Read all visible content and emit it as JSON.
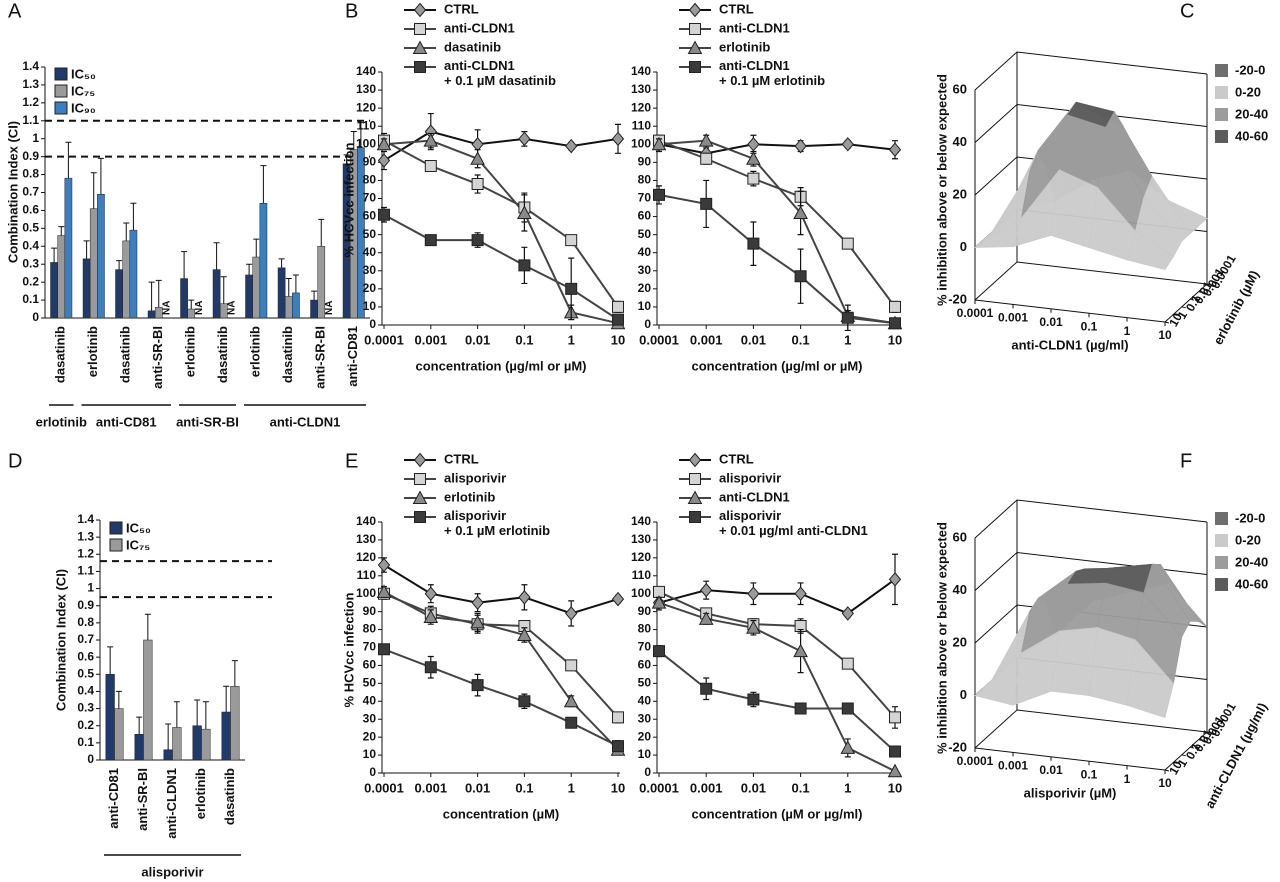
{
  "chart_data": [
    {
      "panel": "A",
      "type": "bar",
      "y_label": "Combination Index (CI)",
      "ylim": [
        0,
        1.4
      ],
      "yticks": [
        0,
        0.1,
        0.2,
        0.3,
        0.4,
        0.5,
        0.6,
        0.7,
        0.8,
        0.9,
        1,
        1.1,
        1.2,
        1.3,
        1.4
      ],
      "reference_lines": [
        0.9,
        1.1
      ],
      "groups": [
        {
          "name": "erlotinib",
          "categories": [
            "dasatinib"
          ]
        },
        {
          "name": "anti-CD81",
          "categories": [
            "erlotinib",
            "dasatinib",
            "anti-SR-BI"
          ]
        },
        {
          "name": "anti-SR-BI",
          "categories": [
            "erlotinib",
            "dasatinib"
          ]
        },
        {
          "name": "anti-CLDN1",
          "categories": [
            "erlotinib",
            "dasatinib",
            "anti-SR-BI",
            "anti-CD81"
          ]
        }
      ],
      "series": [
        {
          "name": "IC₅₀",
          "color": "#1f3a6b",
          "values": [
            0.31,
            0.33,
            0.27,
            0.04,
            0.22,
            0.27,
            0.24,
            0.28,
            0.1,
            0.86
          ],
          "errors": [
            0.08,
            0.1,
            0.05,
            0.16,
            0.15,
            0.15,
            0.06,
            0.05,
            0.05,
            0.05
          ]
        },
        {
          "name": "IC₇₅",
          "color": "#9a9a9a",
          "values": [
            0.46,
            0.61,
            0.43,
            0.06,
            0.05,
            0.08,
            0.34,
            0.12,
            0.4,
            0.94
          ],
          "errors": [
            0.05,
            0.2,
            0.1,
            0.15,
            0.05,
            0.15,
            0.1,
            0.1,
            0.15,
            0.1
          ]
        },
        {
          "name": "IC₉₀",
          "color": "#3a7fc1",
          "values": [
            0.78,
            0.69,
            0.49,
            null,
            null,
            null,
            0.64,
            0.14,
            null,
            0.95
          ],
          "errors": [
            0.2,
            0.2,
            0.15,
            null,
            null,
            null,
            0.21,
            0.1,
            null,
            0.14
          ],
          "value_labels": [
            null,
            null,
            null,
            "NA",
            "NA",
            "NA",
            null,
            null,
            "NA",
            null
          ]
        }
      ]
    },
    {
      "panel": "B",
      "type": "line",
      "y_label": "% HCVcc infection",
      "x_label": "concentration (µg/ml or µM)",
      "line_color": "#444",
      "x": [
        0.0001,
        0.001,
        0.01,
        0.1,
        1,
        10
      ],
      "xscale": "log",
      "xlim": [
        0.0001,
        10
      ],
      "xticks": [
        0.0001,
        0.001,
        0.01,
        0.1,
        1,
        10
      ],
      "ylim": [
        0,
        140
      ],
      "yticks": [
        0,
        10,
        20,
        30,
        40,
        50,
        60,
        70,
        80,
        90,
        100,
        110,
        120,
        130,
        140
      ],
      "series": [
        {
          "name": "CTRL",
          "marker": "diamond",
          "color": "#9a9a9a",
          "values": [
            91,
            107,
            100,
            103,
            99,
            103
          ],
          "errors": [
            5,
            10,
            8,
            4,
            2,
            8
          ]
        },
        {
          "name": "anti-CLDN1",
          "marker": "square",
          "color": "#d4d4d4",
          "values": [
            102,
            88,
            78,
            65,
            47,
            10
          ],
          "errors": [
            4,
            3,
            5,
            8,
            2,
            3
          ]
        },
        {
          "name": "dasatinib",
          "marker": "triangle",
          "color": "#8a8a8a",
          "values": [
            100,
            102,
            92,
            62,
            7,
            1
          ],
          "errors": [
            3,
            4,
            5,
            10,
            4,
            1
          ]
        },
        {
          "name": "anti-CLDN1\n+ 0.1 µM dasatinib",
          "marker": "square",
          "color": "#3a3a3a",
          "values": [
            61,
            47,
            47,
            33,
            20,
            3
          ],
          "errors": [
            4,
            2,
            4,
            10,
            17,
            2
          ]
        }
      ]
    },
    {
      "type": "line",
      "x_label": "concentration (µg/ml or µM)",
      "line_color": "#444",
      "x": [
        0.0001,
        0.001,
        0.01,
        0.1,
        1,
        10
      ],
      "xscale": "log",
      "xlim": [
        0.0001,
        10
      ],
      "xticks": [
        0.0001,
        0.001,
        0.01,
        0.1,
        1,
        10
      ],
      "ylim": [
        0,
        140
      ],
      "yticks": [
        0,
        10,
        20,
        30,
        40,
        50,
        60,
        70,
        80,
        90,
        100,
        110,
        120,
        130,
        140
      ],
      "series": [
        {
          "name": "CTRL",
          "marker": "diamond",
          "color": "#9a9a9a",
          "values": [
            100,
            95,
            100,
            99,
            100,
            97
          ],
          "errors": [
            4,
            3,
            5,
            3,
            2,
            5
          ]
        },
        {
          "name": "anti-CLDN1",
          "marker": "square",
          "color": "#d4d4d4",
          "values": [
            102,
            92,
            81,
            71,
            45,
            10
          ],
          "errors": [
            3,
            3,
            4,
            5,
            2,
            3
          ]
        },
        {
          "name": "erlotinib",
          "marker": "triangle",
          "color": "#8a8a8a",
          "values": [
            100,
            102,
            92,
            62,
            5,
            1
          ],
          "errors": [
            3,
            3,
            4,
            12,
            3,
            1
          ]
        },
        {
          "name": "anti-CLDN1\n+ 0.1 µM erlotinib",
          "marker": "square",
          "color": "#3a3a3a",
          "values": [
            72,
            67,
            45,
            27,
            4,
            1
          ],
          "errors": [
            5,
            13,
            12,
            15,
            7,
            1
          ]
        }
      ]
    },
    {
      "panel": "C",
      "type": "surface",
      "z_label": "% inhibition above or below expected",
      "x_label": "anti-CLDN1 (µg/ml)",
      "y_label": "erlotinib (µM)",
      "xlim": [
        0.0001,
        10
      ],
      "xticks": [
        0.0001,
        0.001,
        0.01,
        0.1,
        1,
        10
      ],
      "ylim": [
        0.0001,
        10
      ],
      "yticks": [
        0.0001,
        0.001,
        0.01,
        0.1,
        1,
        10
      ],
      "zlim": [
        -20,
        60
      ],
      "zticks": [
        -20,
        0,
        20,
        40,
        60
      ],
      "x": [
        0.0001,
        0.001,
        0.01,
        0.1,
        1,
        10
      ],
      "y": [
        0.0001,
        0.001,
        0.01,
        0.1,
        1,
        10
      ],
      "z": [
        [
          0,
          5,
          15,
          20,
          10,
          5
        ],
        [
          0,
          20,
          45,
          40,
          15,
          5
        ],
        [
          0,
          30,
          50,
          48,
          25,
          5
        ],
        [
          0,
          25,
          48,
          45,
          20,
          5
        ],
        [
          0,
          10,
          30,
          25,
          10,
          2
        ],
        [
          0,
          2,
          8,
          5,
          2,
          0
        ]
      ],
      "bands": [
        {
          "label": "-20-0",
          "range": [
            -20,
            0
          ],
          "color": "#6e6e6e"
        },
        {
          "label": "0-20",
          "range": [
            0,
            20
          ],
          "color": "#cacaca"
        },
        {
          "label": "20-40",
          "range": [
            20,
            40
          ],
          "color": "#9c9c9c"
        },
        {
          "label": "40-60",
          "range": [
            40,
            60
          ],
          "color": "#5c5c5c"
        }
      ]
    },
    {
      "panel": "D",
      "type": "bar",
      "y_label": "Combination Index (CI)",
      "ylim": [
        0,
        1.4
      ],
      "yticks": [
        0,
        0.1,
        0.2,
        0.3,
        0.4,
        0.5,
        0.6,
        0.7,
        0.8,
        0.9,
        1,
        1.1,
        1.2,
        1.3,
        1.4
      ],
      "reference_lines": [
        0.95,
        1.16
      ],
      "groups": [
        {
          "name": "alisporivir",
          "categories": [
            "anti-CD81",
            "anti-SR-BI",
            "anti-CLDN1",
            "erlotinib",
            "dasatinib"
          ]
        }
      ],
      "series": [
        {
          "name": "IC₅₀",
          "color": "#1f3a6b",
          "values": [
            0.5,
            0.15,
            0.06,
            0.2,
            0.28
          ],
          "errors": [
            0.16,
            0.1,
            0.15,
            0.15,
            0.15
          ]
        },
        {
          "name": "IC₇₅",
          "color": "#9a9a9a",
          "values": [
            0.3,
            0.7,
            0.19,
            0.18,
            0.43
          ],
          "errors": [
            0.1,
            0.15,
            0.15,
            0.16,
            0.15
          ]
        }
      ]
    },
    {
      "panel": "E",
      "type": "line",
      "y_label": "% HCVcc infection",
      "x_label": "concentration (µM)",
      "line_color": "#444",
      "x": [
        0.0001,
        0.001,
        0.01,
        0.1,
        1,
        10
      ],
      "xscale": "log",
      "xlim": [
        0.0001,
        10
      ],
      "xticks": [
        0.0001,
        0.001,
        0.01,
        0.1,
        1,
        10
      ],
      "ylim": [
        0,
        140
      ],
      "yticks": [
        0,
        10,
        20,
        30,
        40,
        50,
        60,
        70,
        80,
        90,
        100,
        110,
        120,
        130,
        140
      ],
      "series": [
        {
          "name": "CTRL",
          "marker": "diamond",
          "color": "#9a9a9a",
          "values": [
            116,
            100,
            95,
            98,
            89,
            97
          ],
          "errors": [
            4,
            5,
            5,
            7,
            7,
            2
          ]
        },
        {
          "name": "alisporivir",
          "marker": "square",
          "color": "#d4d4d4",
          "values": [
            100,
            89,
            83,
            82,
            60,
            31
          ],
          "errors": [
            3,
            4,
            5,
            3,
            2,
            3
          ]
        },
        {
          "name": "erlotinib",
          "marker": "triangle",
          "color": "#8a8a8a",
          "values": [
            101,
            87,
            84,
            77,
            40,
            13
          ],
          "errors": [
            3,
            4,
            5,
            4,
            3,
            2
          ]
        },
        {
          "name": "alisporivir\n+ 0.1 µM erlotinib",
          "marker": "square",
          "color": "#3a3a3a",
          "values": [
            69,
            59,
            49,
            40,
            28,
            15
          ],
          "errors": [
            2,
            6,
            6,
            4,
            2,
            3
          ]
        }
      ]
    },
    {
      "type": "line",
      "x_label": "concentration (µM or µg/ml)",
      "line_color": "#444",
      "x": [
        0.0001,
        0.001,
        0.01,
        0.1,
        1,
        10
      ],
      "xscale": "log",
      "xlim": [
        0.0001,
        10
      ],
      "xticks": [
        0.0001,
        0.001,
        0.01,
        0.1,
        1,
        10
      ],
      "ylim": [
        0,
        140
      ],
      "yticks": [
        0,
        10,
        20,
        30,
        40,
        50,
        60,
        70,
        80,
        90,
        100,
        110,
        120,
        130,
        140
      ],
      "series": [
        {
          "name": "CTRL",
          "marker": "diamond",
          "color": "#9a9a9a",
          "values": [
            95,
            102,
            100,
            100,
            89,
            108
          ],
          "errors": [
            4,
            5,
            6,
            6,
            2,
            14
          ]
        },
        {
          "name": "alisporivir",
          "marker": "square",
          "color": "#d4d4d4",
          "values": [
            101,
            89,
            83,
            82,
            61,
            31
          ],
          "errors": [
            3,
            3,
            3,
            4,
            2,
            6
          ]
        },
        {
          "name": "anti-CLDN1",
          "marker": "triangle",
          "color": "#8a8a8a",
          "values": [
            95,
            86,
            81,
            68,
            14,
            1
          ],
          "errors": [
            3,
            3,
            4,
            12,
            5,
            1
          ]
        },
        {
          "name": "alisporivir\n+ 0.01 µg/ml anti-CLDN1",
          "marker": "square",
          "color": "#3a3a3a",
          "values": [
            68,
            47,
            41,
            36,
            36,
            12
          ],
          "errors": [
            3,
            6,
            4,
            2,
            2,
            2
          ]
        }
      ]
    },
    {
      "panel": "F",
      "type": "surface",
      "z_label": "% inhibition above or below expected",
      "x_label": "alisporivir (µM)",
      "y_label": "anti-CLDN1 (µg/ml)",
      "xlim": [
        0.0001,
        10
      ],
      "xticks": [
        0.0001,
        0.001,
        0.01,
        0.1,
        1,
        10
      ],
      "ylim": [
        0.0001,
        10
      ],
      "yticks": [
        0.0001,
        0.001,
        0.01,
        0.1,
        1,
        10
      ],
      "zlim": [
        -20,
        60
      ],
      "zticks": [
        -20,
        0,
        20,
        40,
        60
      ],
      "x": [
        0.0001,
        0.001,
        0.01,
        0.1,
        1,
        10
      ],
      "y": [
        0.0001,
        0.001,
        0.01,
        0.1,
        1,
        10
      ],
      "z": [
        [
          0,
          10,
          25,
          30,
          35,
          20
        ],
        [
          0,
          25,
          40,
          42,
          45,
          25
        ],
        [
          0,
          30,
          42,
          45,
          48,
          28
        ],
        [
          0,
          28,
          40,
          42,
          40,
          25
        ],
        [
          0,
          15,
          25,
          28,
          25,
          10
        ],
        [
          0,
          -2,
          5,
          5,
          3,
          0
        ]
      ],
      "bands": [
        {
          "label": "-20-0",
          "range": [
            -20,
            0
          ],
          "color": "#6e6e6e"
        },
        {
          "label": "0-20",
          "range": [
            0,
            20
          ],
          "color": "#cacaca"
        },
        {
          "label": "20-40",
          "range": [
            20,
            40
          ],
          "color": "#9c9c9c"
        },
        {
          "label": "40-60",
          "range": [
            40,
            60
          ],
          "color": "#5c5c5c"
        }
      ]
    }
  ]
}
